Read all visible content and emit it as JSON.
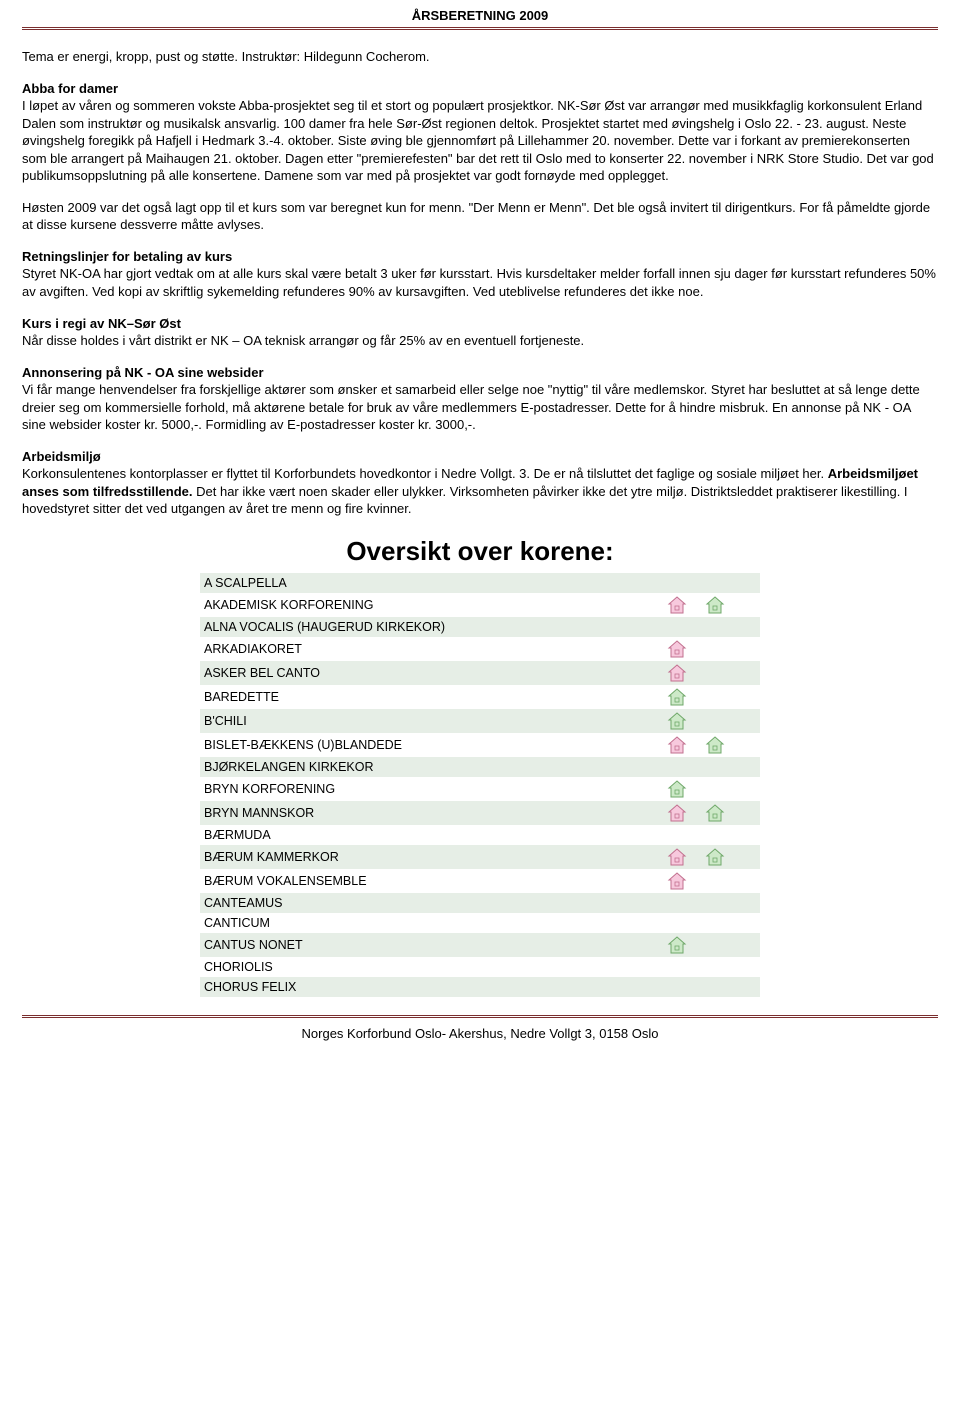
{
  "header": {
    "title": "ÅRSBERETNING 2009"
  },
  "intro": {
    "line1": "Tema er energi, kropp, pust og støtte. Instruktør: Hildegunn Cocherom."
  },
  "abba": {
    "heading": "Abba for damer",
    "body": "I løpet av våren og sommeren vokste Abba-prosjektet seg til et stort og populært prosjektkor. NK-Sør Øst var arrangør med musikkfaglig korkonsulent Erland Dalen som instruktør og musikalsk ansvarlig. 100 damer fra hele Sør-Øst regionen deltok. Prosjektet startet med øvingshelg i Oslo 22. - 23. august. Neste øvingshelg foregikk på Hafjell i Hedmark 3.-4. oktober. Siste øving ble gjennomført på Lillehammer  20. november. Dette var i forkant av premierekonserten som ble arrangert på Maihaugen 21. oktober. Dagen etter \"premierefesten\" bar det rett til Oslo med to konserter  22. november i NRK Store Studio. Det var god publikumsoppslutning på alle konsertene. Damene som var med på prosjektet var godt fornøyde med opplegget."
  },
  "hosten": {
    "p1": "Høsten 2009 var det også lagt opp til et kurs som var beregnet kun for menn. \"Der Menn er Menn\". Det ble også invitert til dirigentkurs. For få påmeldte gjorde at disse kursene dessverre måtte avlyses."
  },
  "retning": {
    "heading": "Retningslinjer for betaling av kurs",
    "body": "Styret NK-OA har gjort vedtak om at alle kurs skal være betalt 3 uker før kursstart. Hvis kursdeltaker melder forfall innen sju dager før kursstart refunderes 50% av avgiften. Ved kopi av skriftlig sykemelding refunderes 90% av kursavgiften. Ved uteblivelse refunderes det ikke noe."
  },
  "regi": {
    "heading": "Kurs i regi av NK–Sør Øst",
    "body": "Når disse holdes i vårt distrikt er NK – OA teknisk arrangør og får 25% av en eventuell fortjeneste."
  },
  "annonse": {
    "heading": "Annonsering på NK - OA sine websider",
    "body": "Vi får mange henvendelser fra forskjellige aktører som ønsker et samarbeid eller selge noe \"nyttig\" til våre medlemskor. Styret har besluttet at så lenge dette dreier seg om kommersielle forhold, må aktørene betale for bruk av våre medlemmers E-postadresser. Dette for å hindre misbruk. En annonse på NK - OA sine websider koster kr. 5000,-. Formidling av E-postadresser koster kr. 3000,-."
  },
  "arbeid": {
    "heading": "Arbeidsmiljø",
    "p1a": "Korkonsulentenes kontorplasser er flyttet til Korforbundets hovedkontor i Nedre Vollgt. 3. De er nå tilsluttet det faglige og sosiale miljøet her. ",
    "boldFragment": "Arbeidsmiljøet anses som tilfredsstillende.",
    "p1b": " Det har ikke vært noen skader eller ulykker. Virksomheten påvirker ikke det ytre miljø. Distriktsleddet praktiserer likestilling. I hovedstyret sitter det ved utgangen av året tre menn og fire kvinner."
  },
  "choirsHeading": "Oversikt over korene:",
  "iconColors": {
    "pink": {
      "fill": "#f7c9dd",
      "stroke": "#c2708f"
    },
    "green": {
      "fill": "#cde9c8",
      "stroke": "#6fa869"
    }
  },
  "choirs": [
    {
      "name": "A SCALPELLA",
      "icons": []
    },
    {
      "name": "AKADEMISK KORFORENING",
      "icons": [
        "pink",
        "green"
      ]
    },
    {
      "name": "ALNA VOCALIS (HAUGERUD KIRKEKOR)",
      "icons": []
    },
    {
      "name": "ARKADIAKORET",
      "icons": [
        "pink"
      ]
    },
    {
      "name": "ASKER BEL CANTO",
      "icons": [
        "pink"
      ]
    },
    {
      "name": "BAREDETTE",
      "icons": [
        "green"
      ]
    },
    {
      "name": "B'CHILI",
      "icons": [
        "green"
      ]
    },
    {
      "name": "BISLET-BÆKKENS (U)BLANDEDE",
      "icons": [
        "pink",
        "green"
      ]
    },
    {
      "name": "BJØRKELANGEN KIRKEKOR",
      "icons": []
    },
    {
      "name": "BRYN KORFORENING",
      "icons": [
        "green"
      ]
    },
    {
      "name": "BRYN MANNSKOR",
      "icons": [
        "pink",
        "green"
      ]
    },
    {
      "name": "BÆRMUDA",
      "icons": []
    },
    {
      "name": "BÆRUM KAMMERKOR",
      "icons": [
        "pink",
        "green"
      ]
    },
    {
      "name": "BÆRUM VOKALENSEMBLE",
      "icons": [
        "pink"
      ]
    },
    {
      "name": "CANTEAMUS",
      "icons": []
    },
    {
      "name": "CANTICUM",
      "icons": []
    },
    {
      "name": "CANTUS NONET",
      "icons": [
        "green"
      ]
    },
    {
      "name": "CHORIOLIS",
      "icons": []
    },
    {
      "name": "CHORUS FELIX",
      "icons": []
    }
  ],
  "footer": "Norges Korforbund Oslo- Akershus, Nedre Vollgt 3, 0158 Oslo"
}
